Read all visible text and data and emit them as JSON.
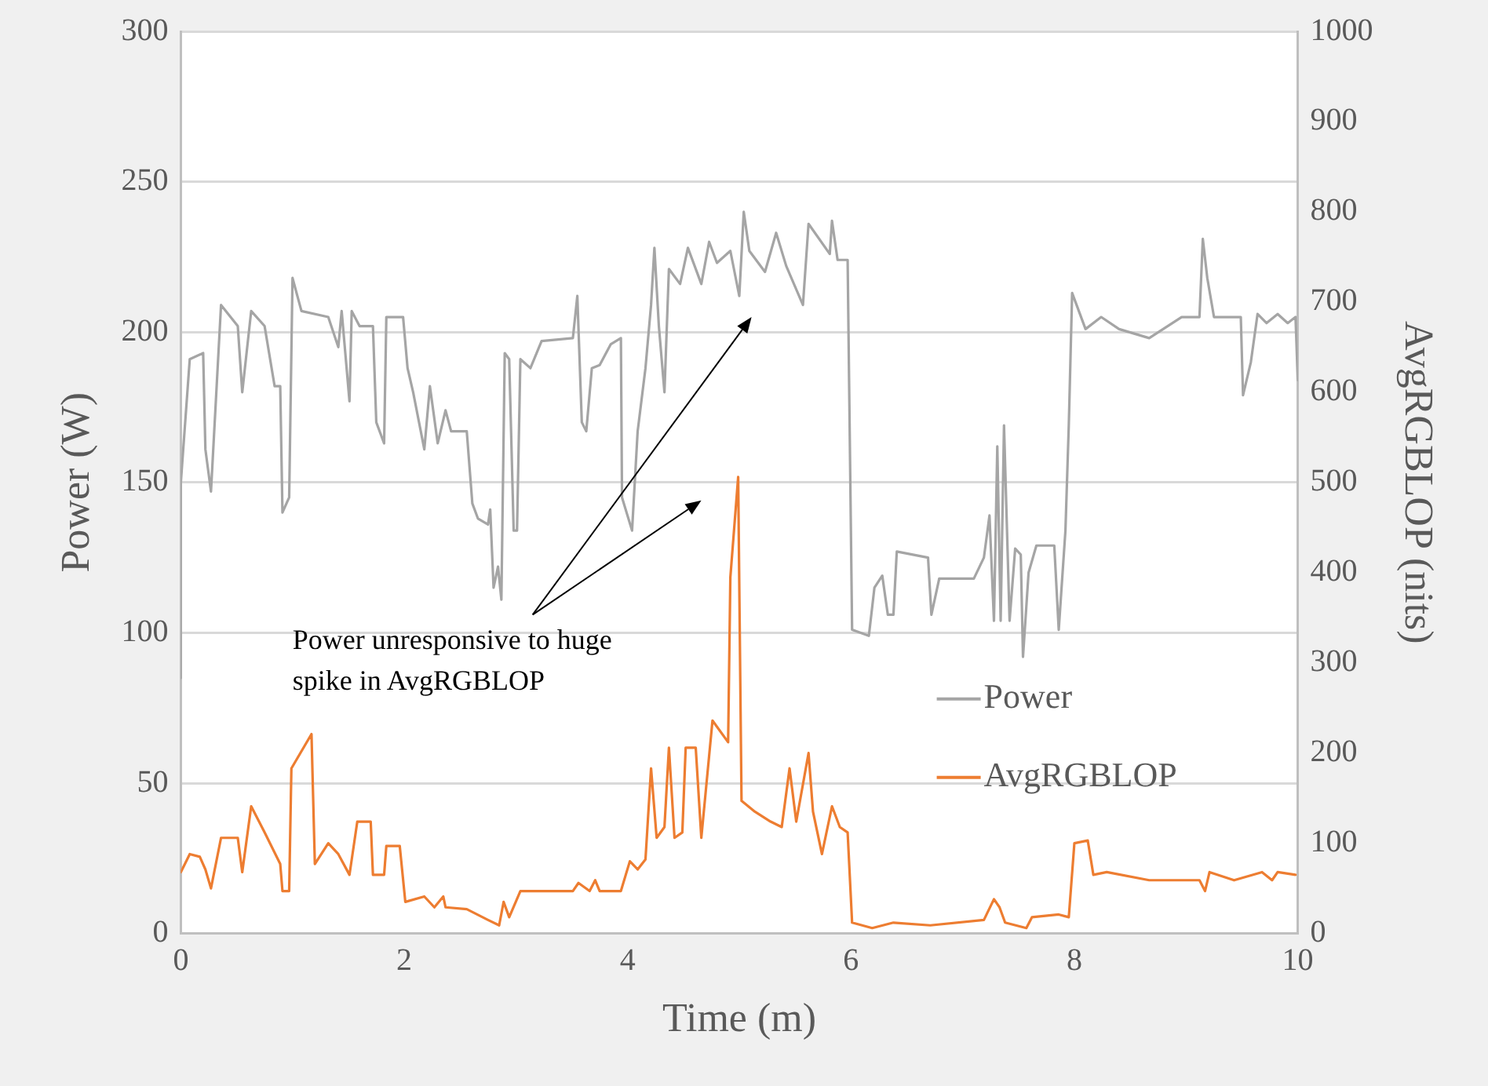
{
  "chart_data": {
    "type": "line",
    "xlabel": "Time (m)",
    "ylabel": "Power (W)",
    "y2label": "AvgRGBLOP (nits)",
    "xlim": [
      0,
      10
    ],
    "xticks": [
      0,
      2,
      4,
      6,
      8,
      10
    ],
    "ylim": [
      0,
      300
    ],
    "yticks": [
      0,
      50,
      100,
      150,
      200,
      250,
      300
    ],
    "y2lim": [
      0,
      1000
    ],
    "y2ticks": [
      0,
      100,
      200,
      300,
      400,
      500,
      600,
      700,
      800,
      900,
      1000
    ],
    "grid": "y",
    "legend": "right",
    "line_style": "solid",
    "annotations": [
      "Power unresponsive to huge spike in AvgRGBLOP"
    ],
    "series": [
      {
        "name": "Power",
        "color": "#a5a5a5",
        "x": [
          0,
          0,
          0.08,
          0.2,
          0.22,
          0.27,
          0.36,
          0.51,
          0.55,
          0.63,
          0.75,
          0.84,
          0.89,
          0.91,
          0.97,
          1,
          1.08,
          1.32,
          1.41,
          1.44,
          1.51,
          1.53,
          1.6,
          1.72,
          1.75,
          1.82,
          1.84,
          1.99,
          2.03,
          2.08,
          2.18,
          2.23,
          2.3,
          2.37,
          2.42,
          2.56,
          2.61,
          2.66,
          2.75,
          2.77,
          2.8,
          2.84,
          2.87,
          2.9,
          2.94,
          2.98,
          3.01,
          3.04,
          3.13,
          3.23,
          3.51,
          3.55,
          3.59,
          3.63,
          3.68,
          3.75,
          3.85,
          3.94,
          3.95,
          4.04,
          4.09,
          4.16,
          4.21,
          4.24,
          4.28,
          4.33,
          4.37,
          4.47,
          4.54,
          4.66,
          4.73,
          4.8,
          4.92,
          5,
          5.04,
          5.09,
          5.23,
          5.33,
          5.42,
          5.57,
          5.62,
          5.81,
          5.83,
          5.88,
          5.97,
          6.01,
          6.16,
          6.21,
          6.28,
          6.33,
          6.38,
          6.41,
          6.69,
          6.72,
          6.79,
          7.1,
          7.19,
          7.24,
          7.28,
          7.31,
          7.34,
          7.37,
          7.42,
          7.47,
          7.52,
          7.54,
          7.59,
          7.66,
          7.82,
          7.86,
          7.92,
          7.95,
          7.98,
          8.01,
          8.1,
          8.24,
          8.4,
          8.67,
          8.96,
          9.12,
          9.15,
          9.19,
          9.25,
          9.49,
          9.51,
          9.58,
          9.64,
          9.72,
          9.82,
          9.91,
          9.98,
          10
        ],
        "values": [
          85,
          150,
          191,
          193,
          161,
          147,
          209,
          202,
          180,
          207,
          202,
          182,
          182,
          140,
          145,
          218,
          207,
          205,
          195,
          207,
          177,
          207,
          202,
          202,
          170,
          163,
          205,
          205,
          188,
          180,
          161,
          182,
          163,
          174,
          167,
          167,
          143,
          138,
          136,
          141,
          115,
          122,
          111,
          193,
          191,
          134,
          134,
          191,
          188,
          197,
          198,
          212,
          170,
          167,
          188,
          189,
          196,
          198,
          145,
          134,
          167,
          188,
          209,
          228,
          202,
          180,
          221,
          216,
          228,
          216,
          230,
          223,
          227,
          212,
          240,
          227,
          220,
          233,
          222,
          209,
          236,
          226,
          237,
          224,
          224,
          101,
          99,
          115,
          119,
          106,
          106,
          127,
          125,
          106,
          118,
          118,
          125,
          139,
          104,
          162,
          104,
          169,
          104,
          128,
          126,
          92,
          120,
          129,
          129,
          101,
          134,
          169,
          213,
          210,
          201,
          205,
          201,
          198,
          205,
          205,
          231,
          218,
          205,
          205,
          179,
          190,
          206,
          203,
          206,
          203,
          205,
          184
        ]
      },
      {
        "name": "AvgRGBLOP",
        "color": "#ed7d31",
        "axis": "y2",
        "x": [
          0,
          0.08,
          0.17,
          0.22,
          0.27,
          0.36,
          0.51,
          0.55,
          0.63,
          0.75,
          0.89,
          0.91,
          0.97,
          0.99,
          1.17,
          1.2,
          1.32,
          1.41,
          1.51,
          1.58,
          1.7,
          1.72,
          1.82,
          1.84,
          1.96,
          2.01,
          2.18,
          2.27,
          2.35,
          2.37,
          2.56,
          2.75,
          2.85,
          2.89,
          2.94,
          3.04,
          3.51,
          3.56,
          3.66,
          3.71,
          3.75,
          3.94,
          4.02,
          4.09,
          4.16,
          4.21,
          4.26,
          4.33,
          4.37,
          4.42,
          4.49,
          4.52,
          4.61,
          4.66,
          4.76,
          4.9,
          4.92,
          4.99,
          5.02,
          5.14,
          5.28,
          5.38,
          5.45,
          5.51,
          5.62,
          5.66,
          5.74,
          5.83,
          5.9,
          5.97,
          6.01,
          6.19,
          6.38,
          6.71,
          7.19,
          7.28,
          7.33,
          7.38,
          7.57,
          7.62,
          7.86,
          7.95,
          8,
          8.12,
          8.17,
          8.29,
          8.67,
          9.12,
          9.17,
          9.21,
          9.43,
          9.68,
          9.77,
          9.82,
          9.98
        ],
        "values": [
          68,
          88,
          85,
          71,
          50,
          106,
          106,
          68,
          141,
          112,
          77,
          47,
          47,
          183,
          221,
          77,
          100,
          88,
          65,
          124,
          124,
          65,
          65,
          97,
          97,
          35,
          41,
          29,
          41,
          29,
          27,
          15,
          9,
          35,
          18,
          47,
          47,
          56,
          47,
          59,
          47,
          47,
          80,
          71,
          82,
          183,
          106,
          118,
          206,
          106,
          112,
          206,
          206,
          106,
          236,
          212,
          395,
          506,
          147,
          135,
          124,
          118,
          183,
          124,
          200,
          135,
          88,
          141,
          118,
          112,
          12,
          6,
          12,
          9,
          15,
          38,
          29,
          12,
          6,
          18,
          21,
          18,
          100,
          103,
          65,
          68,
          59,
          59,
          47,
          68,
          59,
          68,
          59,
          68,
          65
        ]
      }
    ]
  }
}
